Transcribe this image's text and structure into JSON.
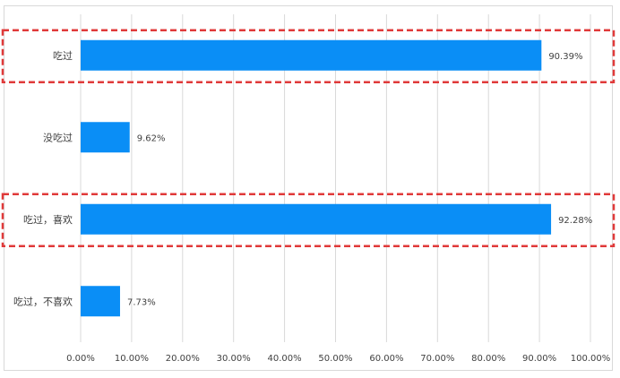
{
  "chart_data": {
    "type": "bar",
    "orientation": "horizontal",
    "categories": [
      "吃过",
      "没吃过",
      "吃过，喜欢",
      "吃过，不喜欢"
    ],
    "values": [
      90.39,
      9.62,
      92.28,
      7.73
    ],
    "value_labels": [
      "90.39%",
      "9.62%",
      "92.28%",
      "7.73%"
    ],
    "xlim": [
      0,
      100
    ],
    "xticks": [
      "0.00%",
      "10.00%",
      "20.00%",
      "30.00%",
      "40.00%",
      "50.00%",
      "60.00%",
      "70.00%",
      "80.00%",
      "90.00%",
      "100.00%"
    ],
    "grid": true,
    "bar_color": "#0a8ef6",
    "highlight_color": "#e03a3a",
    "highlighted_categories": [
      "吃过",
      "吃过，喜欢"
    ]
  }
}
